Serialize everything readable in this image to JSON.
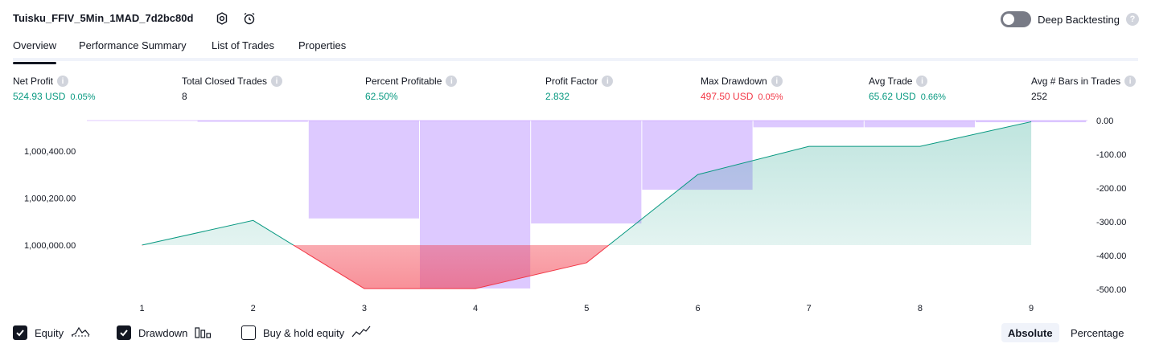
{
  "header": {
    "title": "Tuisku_FFIV_5Min_1MAD_7d2bc80d",
    "icons": [
      "settings-icon",
      "alarm-add-icon"
    ],
    "deep_backtesting_label": "Deep Backtesting",
    "deep_backtesting_enabled": false,
    "help_glyph": "?"
  },
  "tabs": [
    {
      "label": "Overview",
      "active": true
    },
    {
      "label": "Performance Summary",
      "active": false
    },
    {
      "label": "List of Trades",
      "active": false
    },
    {
      "label": "Properties",
      "active": false
    }
  ],
  "metrics": [
    {
      "label": "Net Profit",
      "value": "524.93 USD",
      "pct": "0.05%",
      "color": "#089981"
    },
    {
      "label": "Total Closed Trades",
      "value": "8",
      "pct": "",
      "color": "#131722"
    },
    {
      "label": "Percent Profitable",
      "value": "62.50%",
      "pct": "",
      "color": "#089981"
    },
    {
      "label": "Profit Factor",
      "value": "2.832",
      "pct": "",
      "color": "#089981"
    },
    {
      "label": "Max Drawdown",
      "value": "497.50 USD",
      "pct": "0.05%",
      "color": "#f23645"
    },
    {
      "label": "Avg Trade",
      "value": "65.62 USD",
      "pct": "0.66%",
      "color": "#089981"
    },
    {
      "label": "Avg # Bars in Trades",
      "value": "252",
      "pct": "",
      "color": "#131722"
    }
  ],
  "chart_data": {
    "type": "line+bar",
    "x_ticks": [
      "1",
      "2",
      "3",
      "4",
      "5",
      "6",
      "7",
      "8",
      "9"
    ],
    "equity": {
      "name": "Equity",
      "x": [
        1,
        2,
        3,
        4,
        5,
        6,
        7,
        8,
        9
      ],
      "values": [
        1000000.0,
        1000105.0,
        999815.0,
        999815.0,
        999925.0,
        1000300.0,
        1000420.0,
        1000420.0,
        1000525.0
      ],
      "baseline": 1000000.0,
      "left_axis_ticks": [
        "1,000,400.00",
        "1,000,200.00",
        "1,000,000.00"
      ],
      "left_axis_values": [
        1000400,
        1000200,
        1000000
      ],
      "positive_color": "#089981",
      "negative_color": "#f23645"
    },
    "drawdown": {
      "name": "Drawdown",
      "x": [
        2,
        3,
        4,
        5,
        6,
        7,
        8,
        9
      ],
      "values": [
        0.0,
        -290.0,
        -497.5,
        -305.0,
        -205.0,
        -20.0,
        -20.0,
        -5.0
      ],
      "right_axis_ticks": [
        "0.00",
        "-100.00",
        "-200.00",
        "-300.00",
        "-400.00",
        "-500.00"
      ],
      "right_axis_values": [
        0,
        -100,
        -200,
        -300,
        -400,
        -500
      ],
      "color": "#b388ff"
    }
  },
  "legend": [
    {
      "label": "Equity",
      "checked": true,
      "icon": "equity-line-icon"
    },
    {
      "label": "Drawdown",
      "checked": true,
      "icon": "drawdown-bars-icon"
    },
    {
      "label": "Buy & hold equity",
      "checked": false,
      "icon": "buy-hold-line-icon"
    }
  ],
  "modes": [
    {
      "label": "Absolute",
      "active": true
    },
    {
      "label": "Percentage",
      "active": false
    }
  ]
}
